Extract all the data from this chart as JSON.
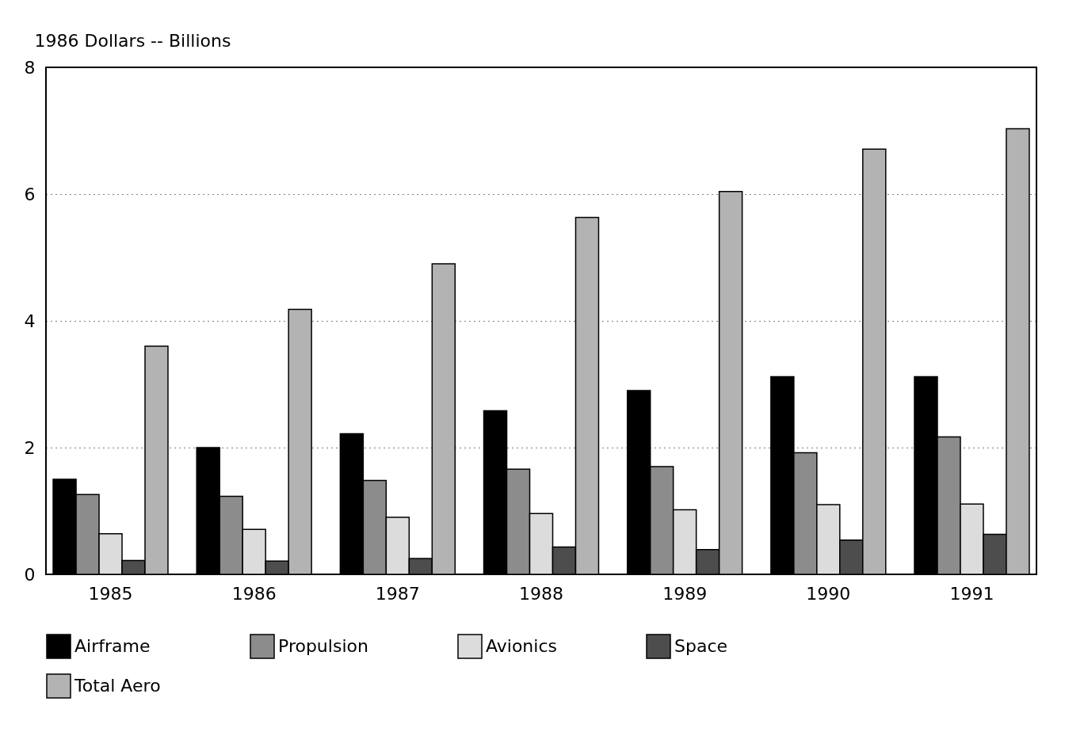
{
  "chart_data": {
    "type": "bar",
    "ylabel": "1986 Dollars -- Billions",
    "categories": [
      "1985",
      "1986",
      "1987",
      "1988",
      "1989",
      "1990",
      "1991"
    ],
    "series": [
      {
        "name": "Airframe",
        "color": "#000000",
        "values": [
          1.5,
          2.0,
          2.22,
          2.58,
          2.9,
          3.12,
          3.12
        ]
      },
      {
        "name": "Propulsion",
        "color": "#8c8c8c",
        "values": [
          1.26,
          1.23,
          1.48,
          1.66,
          1.7,
          1.92,
          2.17
        ]
      },
      {
        "name": "Avionics",
        "color": "#dcdcdc",
        "values": [
          0.64,
          0.71,
          0.9,
          0.96,
          1.02,
          1.1,
          1.11
        ]
      },
      {
        "name": "Space",
        "color": "#4d4d4d",
        "values": [
          0.22,
          0.21,
          0.25,
          0.43,
          0.39,
          0.54,
          0.63
        ]
      },
      {
        "name": "Total Aero",
        "color": "#b3b3b3",
        "values": [
          3.6,
          4.18,
          4.9,
          5.63,
          6.04,
          6.71,
          7.03
        ]
      }
    ],
    "ylim": [
      0,
      8
    ],
    "yticks": [
      0,
      2,
      4,
      6,
      8
    ],
    "grid": "y",
    "line_style": "dotted",
    "legend": "bottom"
  }
}
